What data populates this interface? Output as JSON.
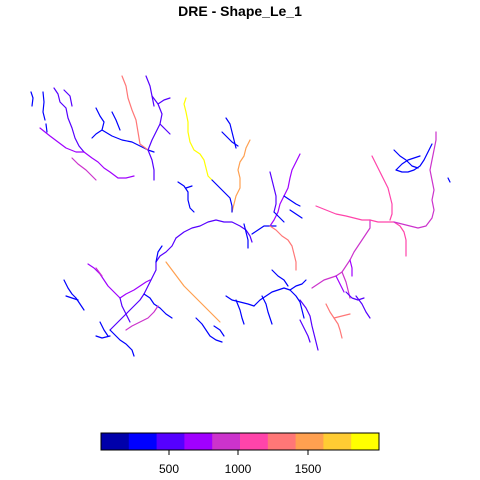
{
  "map": {
    "title": "DRE - Shape_Le_1"
  },
  "legend": {
    "colors": [
      "#0000aa",
      "#0000ff",
      "#5500ff",
      "#a000ff",
      "#cc33cc",
      "#ff44aa",
      "#ff7777",
      "#ffa050",
      "#ffcc33",
      "#ffff00"
    ],
    "tick_labels": [
      "500",
      "1000",
      "1500"
    ]
  },
  "river_network": {
    "color_scale": [
      "#0000aa",
      "#0000ff",
      "#5500ff",
      "#a000ff",
      "#cc33cc",
      "#ff44aa",
      "#ff7777",
      "#ffa050",
      "#ffcc33",
      "#ffff00"
    ]
  }
}
